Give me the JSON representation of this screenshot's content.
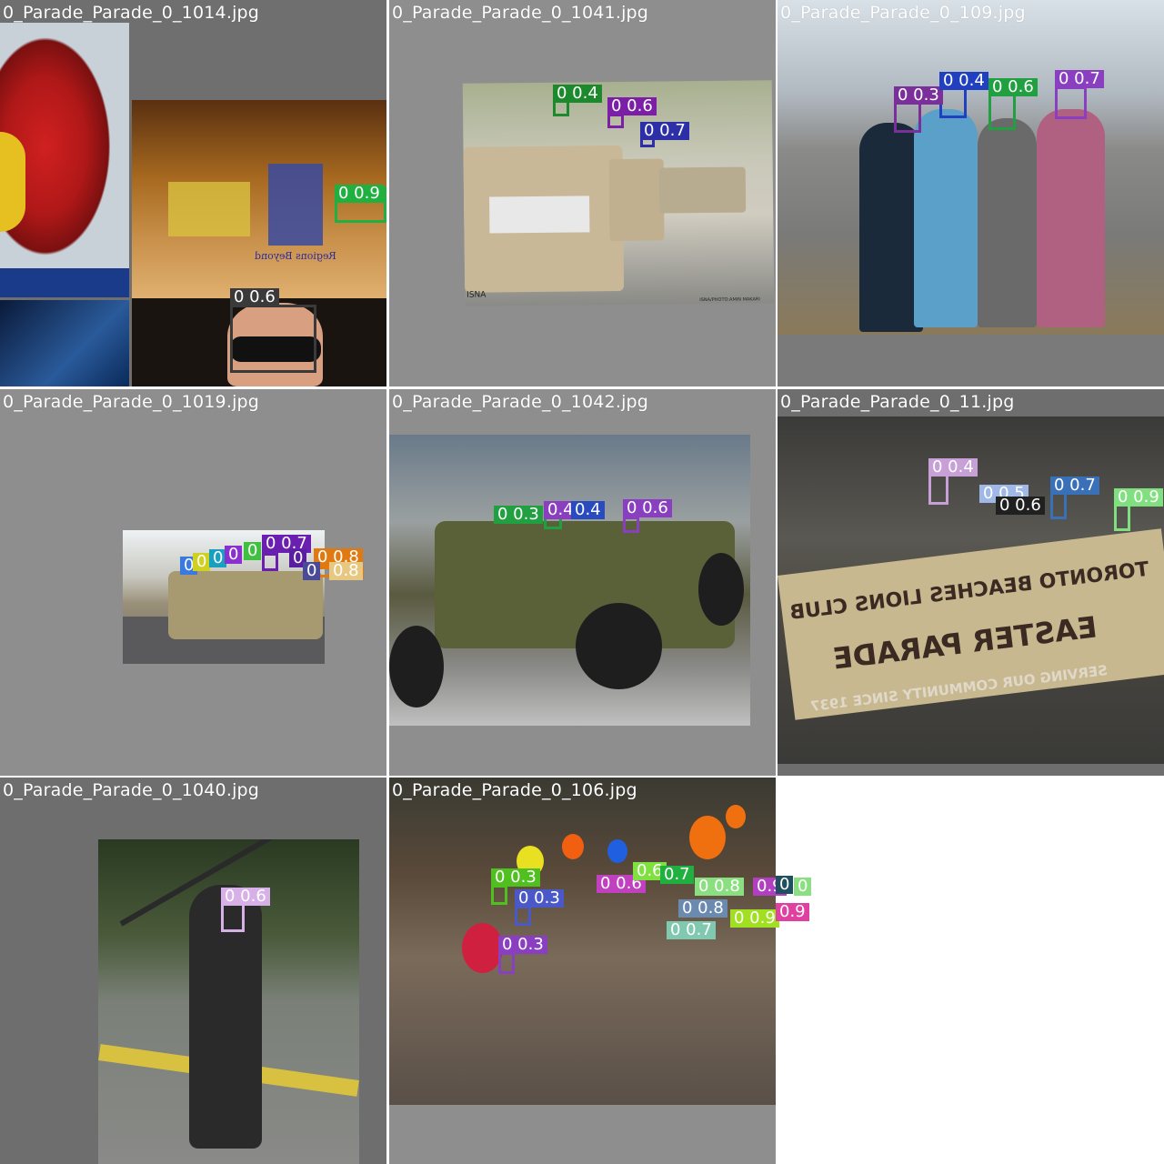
{
  "tiles": [
    {
      "filename": "0_Parade_Parade_0_1014.jpg",
      "tile_bg": "#6e6e6e",
      "detections": [
        {
          "label": "0 0.9",
          "color": "#20b040"
        },
        {
          "label": "0 0.6",
          "color": "#3a3a3a"
        }
      ],
      "overlay_text": "Regions Beyond"
    },
    {
      "filename": "0_Parade_Parade_0_1041.jpg",
      "tile_bg": "#8e8e8e",
      "detections": [
        {
          "label": "0 0.4",
          "color": "#1c8a2c"
        },
        {
          "label": "0 0.6",
          "color": "#7a1fa6"
        },
        {
          "label": "0 0.7",
          "color": "#2c2fa8"
        }
      ],
      "overlay_text": "ISNA",
      "caption_text": "ISNA/PHOTO:AMIN MAKARI"
    },
    {
      "filename": "0_Parade_Parade_0_109.jpg",
      "tile_bg": "#7a7a7a",
      "detections": [
        {
          "label": "0 0.3",
          "color": "#7a2f9a"
        },
        {
          "label": "0 0.4",
          "color": "#2040c0"
        },
        {
          "label": "0 0.6",
          "color": "#20a040"
        },
        {
          "label": "0 0.7",
          "color": "#8a3fc0"
        }
      ]
    },
    {
      "filename": "0_Parade_Parade_0_1019.jpg",
      "tile_bg": "#8e8e8e",
      "detections": [
        {
          "label": "0 0.7",
          "color": "#6a1fb0"
        },
        {
          "label": "0 0.8",
          "color": "#e07a10"
        },
        {
          "label": "0",
          "color": "#3a7ae0"
        },
        {
          "label": "0",
          "color": "#d0d020"
        },
        {
          "label": "0",
          "color": "#18a0c0"
        },
        {
          "label": "0",
          "color": "#8a2fd0"
        },
        {
          "label": "0",
          "color": "#40c040"
        },
        {
          "label": "0",
          "color": "#5a1fa0"
        },
        {
          "label": "0",
          "color": "#4a4a9a"
        },
        {
          "label": "0.8",
          "color": "#e8c880"
        }
      ]
    },
    {
      "filename": "0_Parade_Parade_0_1042.jpg",
      "tile_bg": "#8e8e8e",
      "detections": [
        {
          "label": "0 0.3",
          "color": "#20a040"
        },
        {
          "label": "0.4",
          "color": "#8a3fc0"
        },
        {
          "label": "0.4",
          "color": "#2a4ac0"
        },
        {
          "label": "0 0.6",
          "color": "#8a3fc0"
        }
      ]
    },
    {
      "filename": "0_Parade_Parade_0_11.jpg",
      "tile_bg": "#6e6e6e",
      "detections": [
        {
          "label": "0 0.4",
          "color": "#c8a0d8"
        },
        {
          "label": "0 0.5",
          "color": "#a0b8e8"
        },
        {
          "label": "0 0.6",
          "color": "#202020"
        },
        {
          "label": "0 0.7",
          "color": "#3a70b8"
        },
        {
          "label": "0 0.9",
          "color": "#80e080"
        }
      ],
      "banner_text": {
        "line1": "TORONTO BEACHES LIONS CLUB",
        "line2": "EASTER PARADE",
        "line3": "SERVING OUR COMMUNITY SINCE 1937"
      }
    },
    {
      "filename": "0_Parade_Parade_0_1040.jpg",
      "tile_bg": "#6e6e6e",
      "detections": [
        {
          "label": "0 0.6",
          "color": "#d8b0e8"
        }
      ]
    },
    {
      "filename": "0_Parade_Parade_0_106.jpg",
      "tile_bg": "#8e8e8e",
      "detections": [
        {
          "label": "0 0.3",
          "color": "#50c020"
        },
        {
          "label": "0 0.3",
          "color": "#4a58c8"
        },
        {
          "label": "0 0.3",
          "color": "#8a3fc0"
        },
        {
          "label": "0 0.6",
          "color": "#c040c0"
        },
        {
          "label": "0.6",
          "color": "#80e040"
        },
        {
          "label": "0.7",
          "color": "#20b040"
        },
        {
          "label": "0 0.8",
          "color": "#8ae080"
        },
        {
          "label": "0 0.8",
          "color": "#6a8ab0"
        },
        {
          "label": "0 0.7",
          "color": "#80c8b0"
        },
        {
          "label": "0.9",
          "color": "#b040c0"
        },
        {
          "label": "0 0.9",
          "color": "#a0e020"
        },
        {
          "label": "0",
          "color": "#205060"
        },
        {
          "label": "0",
          "color": "#8ae080"
        },
        {
          "label": "0.9",
          "color": "#e040a0"
        }
      ]
    }
  ]
}
